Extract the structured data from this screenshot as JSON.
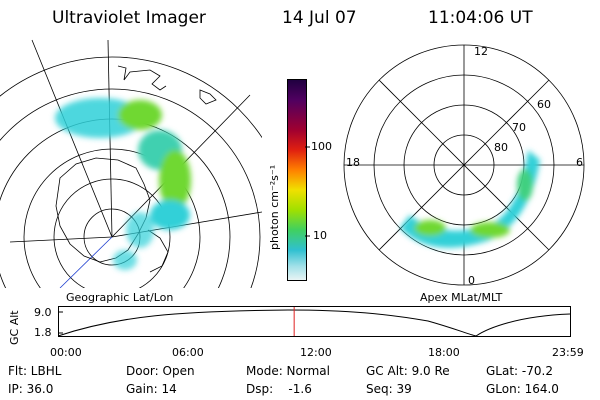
{
  "header": {
    "title": "Ultraviolet Imager",
    "date": "14 Jul 07",
    "time": "11:04:06 UT"
  },
  "geographic_panel": {
    "label": "Geographic Lat/Lon"
  },
  "magnetic_panel": {
    "label": "Apex MLat/MLT",
    "mlt_labels": [
      "12",
      "18",
      "6",
      "0"
    ],
    "lat_labels": [
      "60",
      "70",
      "80"
    ]
  },
  "colorbar": {
    "unit_label": "photon cm⁻²s⁻¹",
    "tick_labels": [
      "100",
      "10"
    ]
  },
  "altitude_plot": {
    "axis_label": "GC Alt",
    "y_ticks": [
      "9.0",
      "1.8"
    ],
    "x_ticks": [
      "00:00",
      "06:00",
      "12:00",
      "18:00",
      "23:59"
    ],
    "marker_time_hours": 11.07
  },
  "info": {
    "flt": "Flt: LBHL",
    "door": "Door: Open",
    "mode": "Mode: Normal",
    "gc_alt": "GC Alt: 9.0 Re",
    "glat": "GLat: -70.2",
    "ip": "IP: 36.0",
    "gain": "Gain: 14",
    "dsp": "Dsp:    -1.6",
    "seq": "Seq: 39",
    "glon": "GLon: 164.0"
  },
  "colors": {
    "marker": "#e02020",
    "aurora_cyan": "#30d0d8",
    "aurora_green": "#70d830"
  }
}
